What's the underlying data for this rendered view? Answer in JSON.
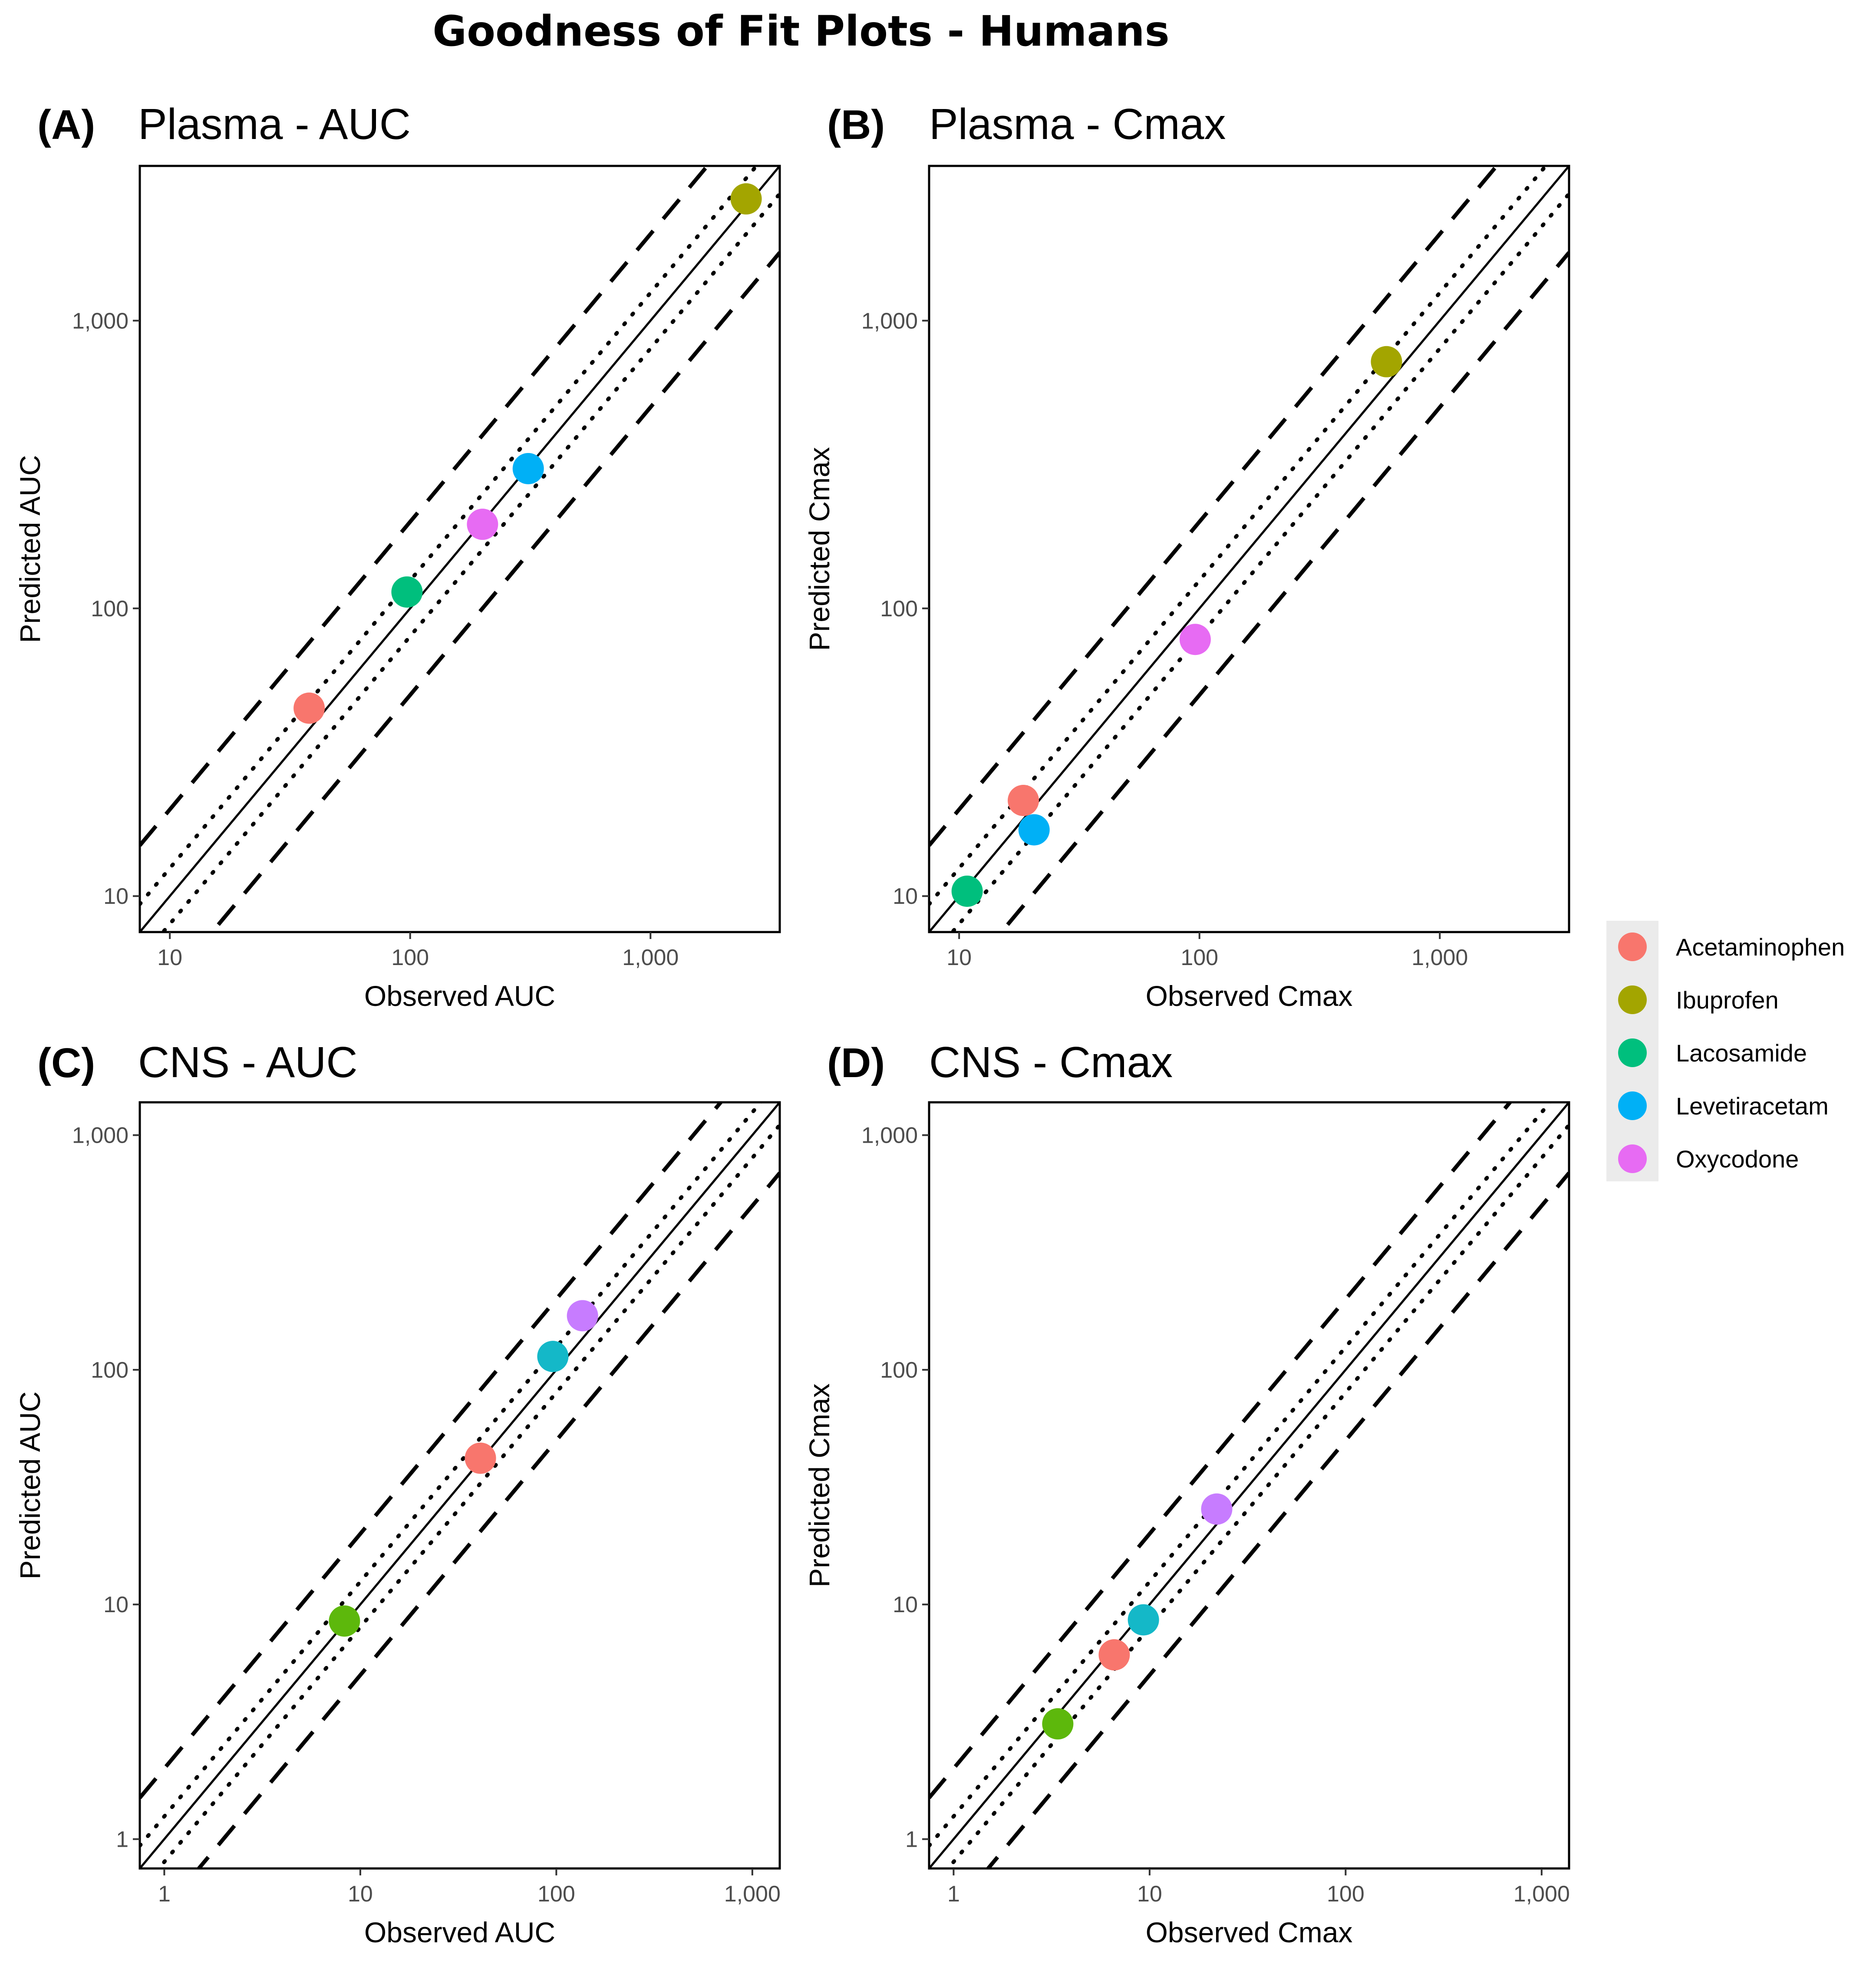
{
  "title": "Goodness of Fit Plots - Humans",
  "colors": {
    "Acetaminophen": "#F8766D",
    "Ibuprofen": "#A3A500",
    "Lacosamide": "#00BF7D",
    "Levetiracetam": "#00B0F6",
    "Oxycodone": "#E76BF3",
    "cns_green": "#5DB80C",
    "cns_cyan": "#14B8C8",
    "cns_violet": "#C77CFF"
  },
  "legend": {
    "items": [
      "Acetaminophen",
      "Ibuprofen",
      "Lacosamide",
      "Levetiracetam",
      "Oxycodone"
    ]
  },
  "chart_data": [
    {
      "type": "scatter",
      "tag": "(A)",
      "title": "Plasma - AUC",
      "xlabel": "Observed AUC",
      "ylabel": "Predicted AUC",
      "scale": "log10",
      "xlim": [
        7.5,
        3450
      ],
      "ylim": [
        7.5,
        3450
      ],
      "xticks": [
        10,
        100,
        1000
      ],
      "yticks": [
        10,
        100,
        1000
      ],
      "tick_labels": [
        "10",
        "100",
        "1,000"
      ],
      "reference_lines": {
        "identity": 1,
        "dotted_fold": 1.25,
        "dashed_fold": 2
      },
      "points": [
        {
          "series": "Acetaminophen",
          "x": 38,
          "y": 45
        },
        {
          "series": "Lacosamide",
          "x": 97,
          "y": 114
        },
        {
          "series": "Oxycodone",
          "x": 200,
          "y": 196
        },
        {
          "series": "Levetiracetam",
          "x": 310,
          "y": 306
        },
        {
          "series": "Ibuprofen",
          "x": 2500,
          "y": 2650
        }
      ]
    },
    {
      "type": "scatter",
      "tag": "(B)",
      "title": "Plasma - Cmax",
      "xlabel": "Observed Cmax",
      "ylabel": "Predicted Cmax",
      "scale": "log10",
      "xlim": [
        7.5,
        3450
      ],
      "ylim": [
        7.5,
        3450
      ],
      "xticks": [
        10,
        100,
        1000
      ],
      "yticks": [
        10,
        100,
        1000
      ],
      "tick_labels": [
        "10",
        "100",
        "1,000"
      ],
      "reference_lines": {
        "identity": 1,
        "dotted_fold": 1.25,
        "dashed_fold": 2
      },
      "points": [
        {
          "series": "Lacosamide",
          "x": 10.8,
          "y": 10.4
        },
        {
          "series": "Acetaminophen",
          "x": 18.5,
          "y": 21.5
        },
        {
          "series": "Levetiracetam",
          "x": 20.5,
          "y": 17
        },
        {
          "series": "Oxycodone",
          "x": 96,
          "y": 78
        },
        {
          "series": "Ibuprofen",
          "x": 600,
          "y": 720
        }
      ]
    },
    {
      "type": "scatter",
      "tag": "(C)",
      "title": "CNS - AUC",
      "xlabel": "Observed AUC",
      "ylabel": "Predicted AUC",
      "scale": "log10",
      "xlim": [
        0.75,
        1380
      ],
      "ylim": [
        0.75,
        1380
      ],
      "xticks": [
        1,
        10,
        100,
        1000
      ],
      "yticks": [
        1,
        10,
        100,
        1000
      ],
      "tick_labels": [
        "1",
        "10",
        "100",
        "1,000"
      ],
      "reference_lines": {
        "identity": 1,
        "dotted_fold": 1.25,
        "dashed_fold": 2
      },
      "points": [
        {
          "color_key": "cns_green",
          "x": 8.3,
          "y": 8.5
        },
        {
          "color_key": "Acetaminophen",
          "x": 41,
          "y": 42
        },
        {
          "color_key": "cns_cyan",
          "x": 96,
          "y": 114
        },
        {
          "color_key": "cns_violet",
          "x": 136,
          "y": 170
        }
      ]
    },
    {
      "type": "scatter",
      "tag": "(D)",
      "title": "CNS - Cmax",
      "xlabel": "Observed Cmax",
      "ylabel": "Predicted Cmax",
      "scale": "log10",
      "xlim": [
        0.75,
        1380
      ],
      "ylim": [
        0.75,
        1380
      ],
      "xticks": [
        1,
        10,
        100,
        1000
      ],
      "yticks": [
        1,
        10,
        100,
        1000
      ],
      "tick_labels": [
        "1",
        "10",
        "100",
        "1,000"
      ],
      "reference_lines": {
        "identity": 1,
        "dotted_fold": 1.25,
        "dashed_fold": 2
      },
      "points": [
        {
          "color_key": "cns_green",
          "x": 3.4,
          "y": 3.1
        },
        {
          "color_key": "Acetaminophen",
          "x": 6.6,
          "y": 6.1
        },
        {
          "color_key": "cns_cyan",
          "x": 9.3,
          "y": 8.6
        },
        {
          "color_key": "cns_violet",
          "x": 22,
          "y": 25.5
        }
      ]
    }
  ]
}
